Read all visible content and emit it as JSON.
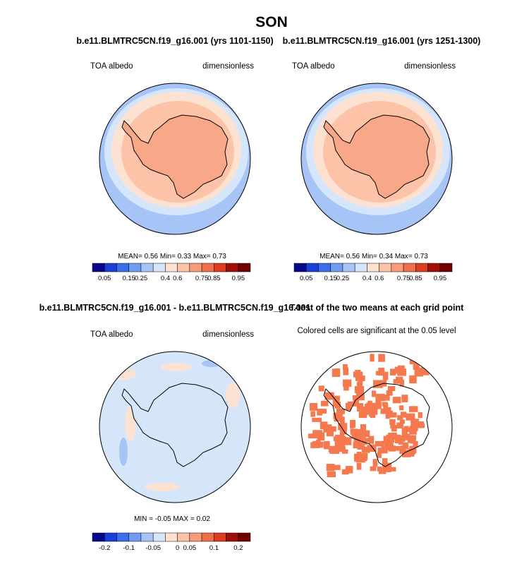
{
  "title": "SON",
  "panels": [
    {
      "title": "b.e11.BLMTRC5CN.f19_g16.001 (yrs 1101-1150)",
      "left_label": "TOA albedo",
      "right_label": "dimensionless",
      "stats": "MEAN=  0.56  Min=  0.33  Max=  0.73",
      "colorbar_labels": [
        "0.05",
        "0.15",
        "0.25",
        "0.4",
        "0.6",
        "0.75",
        "0.85",
        "0.95"
      ]
    },
    {
      "title": "b.e11.BLMTRC5CN.f19_g16.001 (yrs 1251-1300)",
      "left_label": "TOA albedo",
      "right_label": "dimensionless",
      "stats": "MEAN=  0.56  Min=  0.34  Max=  0.73",
      "colorbar_labels": [
        "0.05",
        "0.15",
        "0.25",
        "0.4",
        "0.6",
        "0.75",
        "0.85",
        "0.95"
      ]
    },
    {
      "title": "b.e11.BLMTRC5CN.f19_g16.001 - b.e11.BLMTRC5CN.f19_g16.001",
      "left_label": "TOA albedo",
      "right_label": "dimensionless",
      "stats": "MIN =  -0.05 MAX =  0.02",
      "colorbar_labels": [
        "-0.2",
        "-0.1",
        "-0.05",
        "0",
        "0.05",
        "0.1",
        "0.2"
      ]
    },
    {
      "title": "T-test of the two means at each grid point",
      "subtitle": "Colored cells are significant at the 0.05 level"
    }
  ],
  "palette": [
    "#08088c",
    "#1a3fd6",
    "#3b6ee8",
    "#6f9cf0",
    "#a6c4f5",
    "#d6e6fa",
    "#fde2d2",
    "#fcc3a8",
    "#f89b78",
    "#f06e4a",
    "#dc3c20",
    "#a01008",
    "#700000"
  ]
}
